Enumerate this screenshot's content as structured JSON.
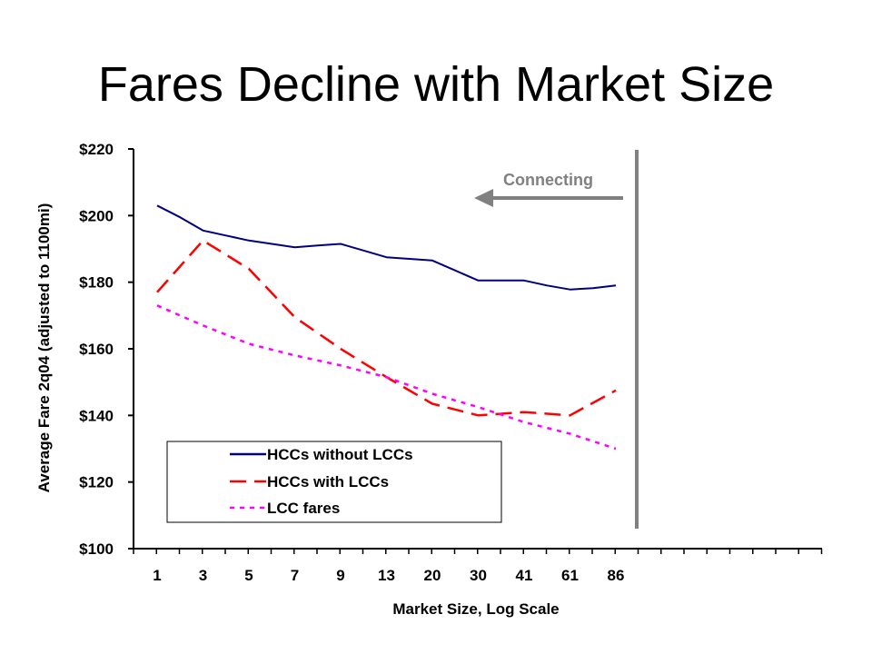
{
  "slide": {
    "title": "Fares Decline with Market Size"
  },
  "chart_data": {
    "type": "line",
    "xlabel": "Market Size, Log Scale",
    "ylabel": "Average Fare 2q04 (adjusted to 1100mi)",
    "categories": [
      "1",
      "3",
      "5",
      "7",
      "9",
      "13",
      "20",
      "30",
      "41",
      "61",
      "86"
    ],
    "ylim": [
      100,
      220
    ],
    "yticks": [
      "$100",
      "$120",
      "$140",
      "$160",
      "$180",
      "$200",
      "$220"
    ],
    "ytick_values": [
      100,
      120,
      140,
      160,
      180,
      200,
      220
    ],
    "series": [
      {
        "name": "HCCs without LCCs",
        "color": "#000080",
        "style": "solid",
        "x": [
          1,
          2,
          3,
          4,
          5,
          6,
          7,
          8,
          9,
          10,
          11,
          12,
          13,
          14,
          15,
          16,
          17,
          18,
          19,
          20,
          21
        ],
        "values": [
          203,
          199.5,
          195.5,
          194,
          192.5,
          191.5,
          190.5,
          191,
          191.5,
          189.5,
          187.5,
          187,
          186.5,
          183.5,
          180.5,
          180.5,
          180.5,
          179,
          177.8,
          178.2,
          179
        ]
      },
      {
        "name": "HCCs with LCCs",
        "color": "#ff0000",
        "style": "dashed",
        "x": [
          1,
          3,
          5,
          7,
          9,
          11,
          13,
          15,
          17,
          19,
          21
        ],
        "values": [
          177,
          192.5,
          184,
          169.5,
          160,
          151.5,
          143.5,
          140,
          141,
          140,
          147.5
        ]
      },
      {
        "name": "LCC fares",
        "color": "#ff00ff",
        "style": "dotted",
        "x": [
          1,
          3,
          5,
          7,
          9,
          11,
          13,
          15,
          17,
          19,
          21
        ],
        "values": [
          173,
          167,
          161.5,
          158,
          155,
          151.5,
          146.5,
          142.5,
          138,
          134.5,
          130
        ]
      }
    ],
    "legend": [
      "HCCs without LCCs",
      "HCCs with LCCs",
      "LCC fares"
    ],
    "legend_position": "lower-left",
    "annotation": {
      "text": "Connecting",
      "color": "#808080"
    },
    "grid": false
  }
}
